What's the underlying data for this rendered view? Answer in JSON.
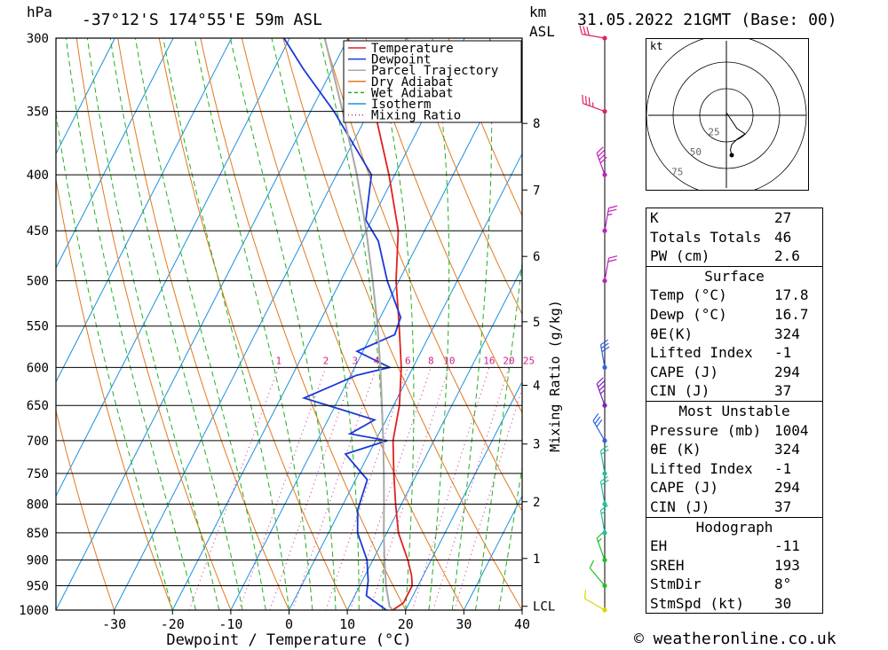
{
  "header": {
    "hpa_label": "hPa",
    "location": "-37°12'S 174°55'E 59m ASL",
    "km_label": "km",
    "asl_label": "ASL",
    "datetime": "31.05.2022 21GMT (Base: 00)"
  },
  "footer": {
    "credit": "© weatheronline.co.uk",
    "xlabel": "Dewpoint / Temperature (°C)",
    "mixing_label": "Mixing Ratio (g/kg)"
  },
  "chart_data": {
    "type": "line",
    "title": "Skew-T log-P sounding",
    "xlabel": "Dewpoint / Temperature (°C)",
    "ylabel": "hPa",
    "pressure_levels": [
      300,
      350,
      400,
      450,
      500,
      550,
      600,
      650,
      700,
      750,
      800,
      850,
      900,
      950,
      1000
    ],
    "pressure_tick_labels": [
      "300",
      "350",
      "400",
      "450",
      "500",
      "550",
      "600",
      "650",
      "700",
      "750",
      "800",
      "850",
      "900",
      "950",
      "1000"
    ],
    "temp_ticks": [
      -30,
      -20,
      -10,
      0,
      10,
      20,
      30,
      40
    ],
    "temp_tick_labels": [
      "-30",
      "-20",
      "-10",
      "0",
      "10",
      "20",
      "30",
      "40"
    ],
    "xlim": [
      -40,
      40
    ],
    "ylim": [
      1000,
      300
    ],
    "km_ticks": [
      {
        "label": "8",
        "p": 359
      },
      {
        "label": "7",
        "p": 413
      },
      {
        "label": "6",
        "p": 475
      },
      {
        "label": "5",
        "p": 545
      },
      {
        "label": "4",
        "p": 623
      },
      {
        "label": "3",
        "p": 705
      },
      {
        "label": "2",
        "p": 796
      },
      {
        "label": "1",
        "p": 897
      },
      {
        "label": "LCL",
        "p": 992
      }
    ],
    "mixing_ratio_labels": [
      "1",
      "2",
      "3",
      "4",
      "6",
      "8",
      "10",
      "16",
      "20",
      "25"
    ],
    "mixing_ratio_values": [
      1,
      2,
      3,
      4,
      6,
      8,
      10,
      16,
      20,
      25
    ],
    "legend": [
      {
        "name": "Temperature",
        "color": "#e02020",
        "style": "solid"
      },
      {
        "name": "Dewpoint",
        "color": "#1a3ad8",
        "style": "solid"
      },
      {
        "name": "Parcel Trajectory",
        "color": "#a8a8a8",
        "style": "solid"
      },
      {
        "name": "Dry Adiabat",
        "color": "#e07a20",
        "style": "solid"
      },
      {
        "name": "Wet Adiabat",
        "color": "#20b020",
        "style": "dashed"
      },
      {
        "name": "Isotherm",
        "color": "#1a90e0",
        "style": "solid"
      },
      {
        "name": "Mixing Ratio",
        "color": "#d0208a",
        "style": "dotted"
      }
    ],
    "series": [
      {
        "name": "Temperature",
        "color": "#e02020",
        "points": [
          [
            1000,
            17.8
          ],
          [
            985,
            19
          ],
          [
            950,
            19
          ],
          [
            930,
            18
          ],
          [
            900,
            16
          ],
          [
            850,
            12
          ],
          [
            800,
            9
          ],
          [
            750,
            6
          ],
          [
            700,
            3
          ],
          [
            650,
            1
          ],
          [
            600,
            -2
          ],
          [
            550,
            -6
          ],
          [
            500,
            -10.5
          ],
          [
            450,
            -14.5
          ],
          [
            400,
            -21
          ],
          [
            350,
            -29
          ],
          [
            300,
            -40
          ]
        ]
      },
      {
        "name": "Dewpoint",
        "color": "#1a3ad8",
        "points": [
          [
            1000,
            16.7
          ],
          [
            970,
            12
          ],
          [
            940,
            11
          ],
          [
            900,
            9
          ],
          [
            850,
            5
          ],
          [
            810,
            3
          ],
          [
            760,
            2
          ],
          [
            720,
            -4
          ],
          [
            700,
            2
          ],
          [
            690,
            -5
          ],
          [
            670,
            -2
          ],
          [
            640,
            -16
          ],
          [
            610,
            -9
          ],
          [
            600,
            -4
          ],
          [
            580,
            -11
          ],
          [
            560,
            -6
          ],
          [
            540,
            -6.5
          ],
          [
            500,
            -12
          ],
          [
            460,
            -17
          ],
          [
            440,
            -21
          ],
          [
            400,
            -24
          ],
          [
            350,
            -36
          ],
          [
            320,
            -45
          ],
          [
            300,
            -51
          ]
        ]
      },
      {
        "name": "Parcel Trajectory",
        "color": "#a8a8a8",
        "points": [
          [
            1000,
            17.8
          ],
          [
            992,
            16.9
          ],
          [
            950,
            14.5
          ],
          [
            900,
            12
          ],
          [
            850,
            9.5
          ],
          [
            800,
            7
          ],
          [
            750,
            4.3
          ],
          [
            700,
            1.3
          ],
          [
            650,
            -2
          ],
          [
            600,
            -5.6
          ],
          [
            550,
            -9.7
          ],
          [
            500,
            -14.5
          ],
          [
            450,
            -20
          ],
          [
            400,
            -26.5
          ],
          [
            350,
            -34.5
          ],
          [
            300,
            -44
          ]
        ]
      }
    ],
    "winds": [
      {
        "p": 1000,
        "dir": 300,
        "spd": 10,
        "color": "#d8d800"
      },
      {
        "p": 950,
        "dir": 320,
        "spd": 10,
        "color": "#20c020"
      },
      {
        "p": 900,
        "dir": 340,
        "spd": 15,
        "color": "#20c020"
      },
      {
        "p": 850,
        "dir": 350,
        "spd": 15,
        "color": "#20c0a0"
      },
      {
        "p": 800,
        "dir": 350,
        "spd": 20,
        "color": "#20c0a0"
      },
      {
        "p": 750,
        "dir": 350,
        "spd": 20,
        "color": "#20c0a0"
      },
      {
        "p": 700,
        "dir": 330,
        "spd": 30,
        "color": "#3060e0"
      },
      {
        "p": 650,
        "dir": 340,
        "spd": 35,
        "color": "#8020c0"
      },
      {
        "p": 600,
        "dir": 350,
        "spd": 30,
        "color": "#3060e0"
      },
      {
        "p": 500,
        "dir": 10,
        "spd": 20,
        "color": "#c020c0"
      },
      {
        "p": 450,
        "dir": 10,
        "spd": 25,
        "color": "#c020c0"
      },
      {
        "p": 400,
        "dir": 340,
        "spd": 40,
        "color": "#c020c0"
      },
      {
        "p": 350,
        "dir": 290,
        "spd": 35,
        "color": "#e02060"
      },
      {
        "p": 300,
        "dir": 280,
        "spd": 30,
        "color": "#e02060"
      }
    ],
    "hodograph": {
      "units_label": "kt",
      "ring_labels": [
        "25",
        "50",
        "75"
      ],
      "points": [
        [
          0,
          -2
        ],
        [
          4,
          4
        ],
        [
          8,
          10
        ],
        [
          14,
          14
        ],
        [
          8,
          18
        ],
        [
          4,
          22
        ],
        [
          3,
          26
        ],
        [
          4,
          30
        ]
      ]
    }
  },
  "indices": {
    "general": [
      {
        "label": "K",
        "value": "27"
      },
      {
        "label": "Totals Totals",
        "value": "46"
      },
      {
        "label": "PW (cm)",
        "value": "2.6"
      }
    ],
    "surface_title": "Surface",
    "surface": [
      {
        "label": "Temp (°C)",
        "value": "17.8"
      },
      {
        "label": "Dewp (°C)",
        "value": "16.7"
      },
      {
        "label": "θE(K)",
        "value": "324"
      },
      {
        "label": "Lifted Index",
        "value": "-1"
      },
      {
        "label": "CAPE (J)",
        "value": "294"
      },
      {
        "label": "CIN (J)",
        "value": "37"
      }
    ],
    "mu_title": "Most Unstable",
    "mu": [
      {
        "label": "Pressure (mb)",
        "value": "1004"
      },
      {
        "label": "θE (K)",
        "value": "324"
      },
      {
        "label": "Lifted Index",
        "value": "-1"
      },
      {
        "label": "CAPE (J)",
        "value": "294"
      },
      {
        "label": "CIN (J)",
        "value": "37"
      }
    ],
    "hodo_title": "Hodograph",
    "hodo": [
      {
        "label": "EH",
        "value": "-11"
      },
      {
        "label": "SREH",
        "value": "193"
      },
      {
        "label": "StmDir",
        "value": "8°"
      },
      {
        "label": "StmSpd (kt)",
        "value": "30"
      }
    ]
  }
}
